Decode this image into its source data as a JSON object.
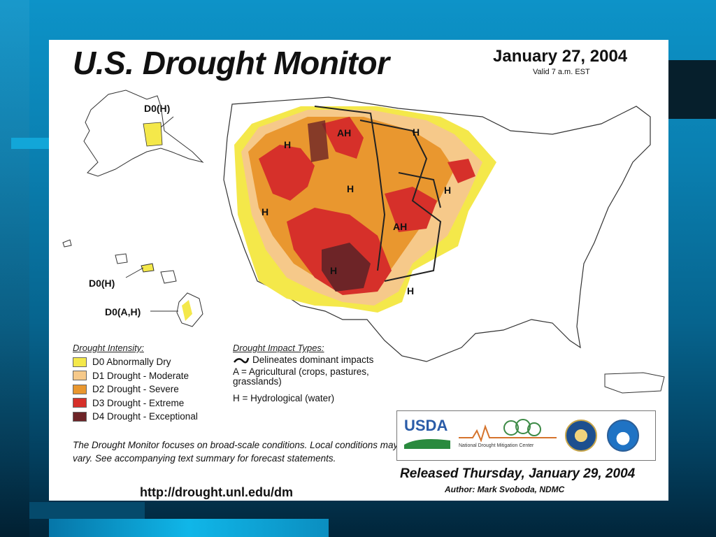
{
  "title": "U.S. Drought Monitor",
  "date": "January 27, 2004",
  "valid": "Valid 7 a.m. EST",
  "map_labels": {
    "alaska": "D0(H)",
    "hawaii_top": "D0(H)",
    "hawaii_big": "D0(A,H)",
    "idaho": "H",
    "montana": "AH",
    "north_dakota": "H",
    "nevada": "H",
    "wyoming": "H",
    "minnesota": "H",
    "kansas": "AH",
    "new_mexico": "H",
    "texas": "H"
  },
  "legend_intensity": {
    "heading": "Drought Intensity:",
    "items": [
      {
        "label": "D0 Abnormally Dry",
        "color": "#f4e84a"
      },
      {
        "label": "D1 Drought - Moderate",
        "color": "#f6c98a"
      },
      {
        "label": "D2 Drought - Severe",
        "color": "#e9972f"
      },
      {
        "label": "D3 Drought - Extreme",
        "color": "#d6302a"
      },
      {
        "label": "D4 Drought - Exceptional",
        "color": "#6d2427"
      }
    ]
  },
  "legend_impact": {
    "heading": "Drought Impact Types:",
    "delineates": "Delineates dominant impacts",
    "agricultural": "A = Agricultural (crops, pastures, grasslands)",
    "hydrological": "H = Hydrological (water)"
  },
  "note": "The Drought Monitor focuses on broad-scale conditions. Local conditions may vary.  See accompanying text summary for forecast statements.",
  "url": "http://drought.unl.edu/dm",
  "logos": {
    "usda": "USDA",
    "ndmc": "National Drought Mitigation Center"
  },
  "released": "Released Thursday, January 29, 2004",
  "author": "Author: Mark Svoboda, NDMC"
}
